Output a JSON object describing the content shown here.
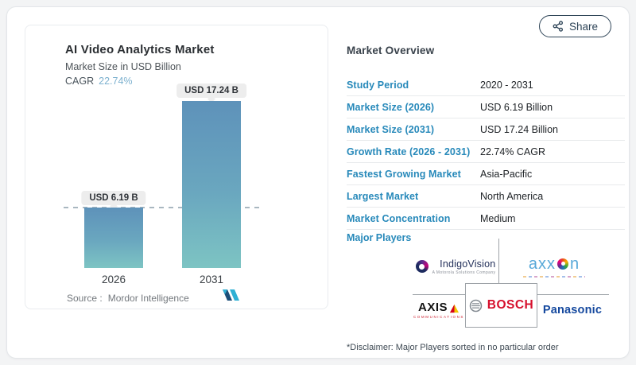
{
  "share": {
    "label": "Share"
  },
  "chart": {
    "title": "AI Video Analytics Market",
    "subtitle": "Market Size in USD Billion",
    "cagr_label": "CAGR",
    "cagr_value": "22.74%",
    "bars": [
      {
        "year": "2026",
        "label": "USD 6.19 B",
        "value": 6.19
      },
      {
        "year": "2031",
        "label": "USD 17.24 B",
        "value": 17.24
      }
    ],
    "source_label": "Source :",
    "source_value": "Mordor Intelligence"
  },
  "chart_data": {
    "type": "bar",
    "categories": [
      "2026",
      "2031"
    ],
    "values": [
      6.19,
      17.24
    ],
    "data_labels": [
      "USD 6.19 B",
      "USD 17.24 B"
    ],
    "title": "AI Video Analytics Market",
    "subtitle": "Market Size in USD Billion",
    "cagr": "22.74%",
    "xlabel": "",
    "ylabel": "Market Size in USD Billion",
    "ylim": [
      0,
      18
    ],
    "grid": false,
    "annotations": [
      "dashed reference line at 6.19"
    ],
    "bar_gradient": [
      "#5e92ba",
      "#7dc4c3"
    ],
    "source": "Mordor Intelligence"
  },
  "overview": {
    "heading": "Market Overview",
    "rows": [
      {
        "label": "Study Period",
        "value": "2020 - 2031"
      },
      {
        "label": "Market Size (2026)",
        "value": "USD 6.19 Billion"
      },
      {
        "label": "Market Size (2031)",
        "value": "USD 17.24 Billion"
      },
      {
        "label": "Growth Rate (2026 - 2031)",
        "value": "22.74% CAGR"
      },
      {
        "label": "Fastest Growing Market",
        "value": "Asia-Pacific"
      },
      {
        "label": "Largest Market",
        "value": "North America"
      },
      {
        "label": "Market Concentration",
        "value": "Medium"
      }
    ],
    "major_players_label": "Major Players",
    "players": {
      "indigovision": {
        "name": "IndigoVision",
        "tagline": "A Motorola Solutions Company"
      },
      "axxon": {
        "left": "axx",
        "right": "n"
      },
      "axis": {
        "name": "AXIS",
        "sub": "COMMUNICATIONS"
      },
      "bosch": {
        "name": "BOSCH"
      },
      "panasonic": {
        "name": "Panasonic"
      }
    },
    "disclaimer": "*Disclaimer: Major Players sorted in no particular order"
  },
  "colors": {
    "accent_blue": "#2789ba",
    "cagr_value": "#7db1cf",
    "bar_top": "#5e92ba",
    "bar_bottom": "#7dc4c3",
    "share_button": "#2f4558",
    "bosch_red": "#d60f2c",
    "panasonic_blue": "#14489e",
    "axis_red": "#cc2030"
  }
}
